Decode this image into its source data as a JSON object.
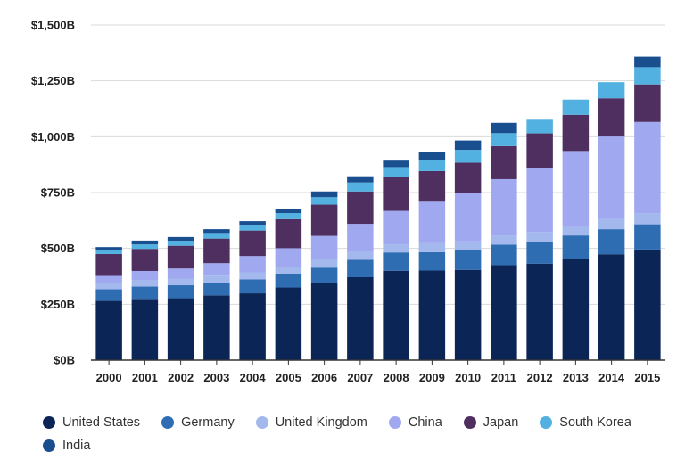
{
  "chart_data": {
    "type": "bar",
    "stacked": true,
    "title": "",
    "xlabel": "",
    "ylabel": "",
    "ylim": [
      0,
      1500
    ],
    "yticks": [
      {
        "value": 0,
        "label": "$0B"
      },
      {
        "value": 250,
        "label": "$250B"
      },
      {
        "value": 500,
        "label": "$500B"
      },
      {
        "value": 750,
        "label": "$750B"
      },
      {
        "value": 1000,
        "label": "$1,000B"
      },
      {
        "value": 1250,
        "label": "$1,250B"
      },
      {
        "value": 1500,
        "label": "$1,500B"
      }
    ],
    "grid": true,
    "legend_position": "bottom-left",
    "categories": [
      "2000",
      "2001",
      "2002",
      "2003",
      "2004",
      "2005",
      "2006",
      "2007",
      "2008",
      "2009",
      "2010",
      "2011",
      "2012",
      "2013",
      "2014",
      "2015"
    ],
    "series": [
      {
        "name": "United States",
        "color": "#0c2557",
        "values": [
          265,
          274,
          277,
          290,
          299,
          325,
          346,
          371,
          400,
          401,
          404,
          425,
          432,
          451,
          474,
          495
        ]
      },
      {
        "name": "Germany",
        "color": "#2f6db3",
        "values": [
          52,
          55,
          58,
          58,
          62,
          62,
          68,
          78,
          82,
          82,
          88,
          92,
          97,
          107,
          112,
          113
        ]
      },
      {
        "name": "United Kingdom",
        "color": "#a3b9ee",
        "values": [
          30,
          30,
          30,
          30,
          32,
          31,
          38,
          36,
          36,
          40,
          40,
          40,
          44,
          38,
          46,
          50
        ]
      },
      {
        "name": "China",
        "color": "#a0a8f0",
        "values": [
          30,
          40,
          45,
          56,
          73,
          83,
          104,
          125,
          150,
          186,
          214,
          253,
          288,
          340,
          369,
          408
        ]
      },
      {
        "name": "Japan",
        "color": "#4f2f60",
        "values": [
          98,
          99,
          102,
          110,
          114,
          130,
          140,
          145,
          150,
          137,
          138,
          148,
          154,
          162,
          171,
          168
        ]
      },
      {
        "name": "South Korea",
        "color": "#52b1e1",
        "values": [
          18,
          20,
          22,
          25,
          26,
          27,
          33,
          40,
          46,
          50,
          57,
          58,
          61,
          68,
          72,
          77
        ]
      },
      {
        "name": "India",
        "color": "#1a4f8f",
        "values": [
          13,
          17,
          17,
          17,
          16,
          20,
          26,
          28,
          29,
          34,
          42,
          46,
          0,
          0,
          0,
          47
        ]
      }
    ]
  }
}
